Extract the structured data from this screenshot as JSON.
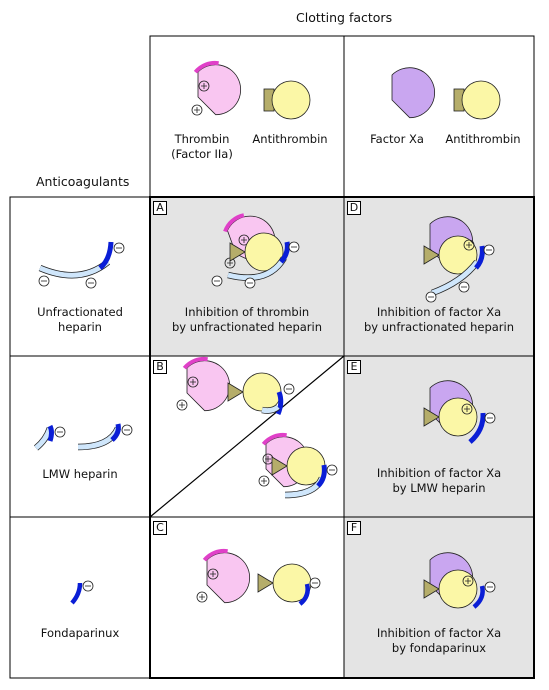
{
  "headers": {
    "clotting_factors": "Clotting factors",
    "anticoagulants": "Anticoagulants"
  },
  "top_labels": {
    "thrombin_line1": "Thrombin",
    "thrombin_line2": "(Factor IIa)",
    "antithrombin_1": "Antithrombin",
    "factor_xa": "Factor Xa",
    "antithrombin_2": "Antithrombin"
  },
  "row_labels": {
    "unfractionated_line1": "Unfractionated",
    "unfractionated_line2": "heparin",
    "lmw": "LMW heparin",
    "fondaparinux": "Fondaparinux"
  },
  "panels": {
    "A": {
      "letter": "A",
      "line1": "Inhibition of thrombin",
      "line2": "by unfractionated heparin"
    },
    "B": {
      "letter": "B"
    },
    "C": {
      "letter": "C"
    },
    "D": {
      "letter": "D",
      "line1": "Inhibition of factor Xa",
      "line2": "by unfractionated heparin"
    },
    "E": {
      "letter": "E",
      "line1": "Inhibition of factor Xa",
      "line2": "by LMW heparin"
    },
    "F": {
      "letter": "F",
      "line1": "Inhibition of factor Xa",
      "line2": "by fondaparinux"
    }
  },
  "symbols": {
    "plus": "+",
    "minus": "−"
  },
  "colors": {
    "thrombin_fill": "#f9c6f1",
    "thrombin_site": "#e040c8",
    "factor_xa_fill": "#c9a6f0",
    "antithrombin_fill": "#fbf7a6",
    "antithrombin_tab": "#b5ad6a",
    "heparin_dark": "#0a1ed6",
    "heparin_light": "#cfe6fb",
    "shaded_panel": "#e4e4e4"
  }
}
